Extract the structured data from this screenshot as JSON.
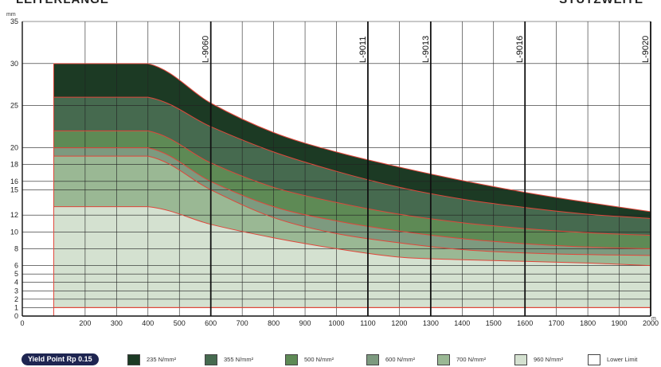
{
  "header": {
    "left_title": "LEITERLÄNGE",
    "right_title": "STÜTZWEITE"
  },
  "chart_data": {
    "type": "area",
    "y_unit": "mm",
    "x_unit": "m",
    "xlim": [
      0,
      2000
    ],
    "ylim": [
      0,
      35
    ],
    "x_ticks": [
      0,
      200,
      300,
      400,
      500,
      600,
      700,
      800,
      900,
      1000,
      1100,
      1200,
      1300,
      1400,
      1500,
      1600,
      1700,
      1800,
      1900,
      2000
    ],
    "y_ticks": [
      0,
      1,
      2,
      3,
      4,
      5,
      6,
      8,
      10,
      12,
      15,
      16,
      18,
      20,
      25,
      30,
      35
    ],
    "x": [
      100,
      400,
      600,
      800,
      1000,
      1200,
      1400,
      1600,
      1800,
      2000
    ],
    "series": [
      {
        "name": "235 N/mm²",
        "color": "#1c3a24",
        "values": [
          30,
          30,
          25.3,
          21.8,
          19.5,
          17.7,
          16.1,
          14.7,
          13.5,
          12.4
        ]
      },
      {
        "name": "355 N/mm²",
        "color": "#466a4f",
        "values": [
          26,
          26,
          22.5,
          19.5,
          17.2,
          15.3,
          13.9,
          12.9,
          12.1,
          11.6
        ]
      },
      {
        "name": "500 N/mm²",
        "color": "#5e8a55",
        "values": [
          22,
          22,
          18.2,
          15.3,
          13.5,
          12.1,
          11.1,
          10.4,
          9.9,
          9.6
        ]
      },
      {
        "name": "600 N/mm²",
        "color": "#7d9a7f",
        "values": [
          20,
          20,
          16.0,
          13.0,
          11.3,
          10.1,
          9.2,
          8.6,
          8.2,
          8.0
        ]
      },
      {
        "name": "700 N/mm²",
        "color": "#9ab894",
        "values": [
          19,
          19,
          15.0,
          11.7,
          9.8,
          8.7,
          7.9,
          7.5,
          7.3,
          7.2
        ]
      },
      {
        "name": "960 N/mm²",
        "color": "#d4e1d0",
        "values": [
          13,
          13,
          10.9,
          9.3,
          8.0,
          7.0,
          6.7,
          6.5,
          6.3,
          6.0
        ]
      },
      {
        "name": "Lower Limit",
        "color": "#ffffff",
        "values": [
          1,
          1,
          1,
          1,
          1,
          1,
          1,
          1,
          1,
          1
        ]
      }
    ],
    "reference_lines": [
      {
        "label": "L-9060",
        "x": 600
      },
      {
        "label": "L-9011",
        "x": 1100
      },
      {
        "label": "L-9013",
        "x": 1300
      },
      {
        "label": "L-9016",
        "x": 1600
      },
      {
        "label": "L-9020",
        "x": 2000
      }
    ],
    "grid": true
  },
  "legend": {
    "title": "Yield Point Rp 0.15"
  },
  "colors": {
    "boundary": "#e0463a",
    "grid": "#222222"
  }
}
